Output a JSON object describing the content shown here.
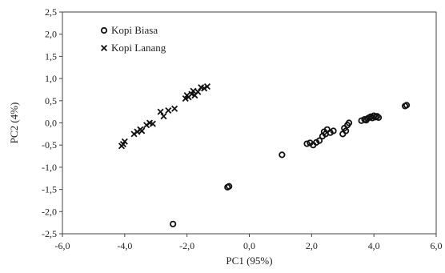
{
  "chart_data": {
    "type": "scatter",
    "title": "",
    "xlabel": "PC1 (95%)",
    "ylabel": "PC2 (4%)",
    "xlim": [
      -6.0,
      6.0
    ],
    "ylim": [
      -2.5,
      2.5
    ],
    "x_ticks": [
      "-6,0",
      "-4,0",
      "-2,0",
      "0,0",
      "2,0",
      "4,0",
      "6,0"
    ],
    "y_ticks": [
      "2,5",
      "2,0",
      "1,5",
      "1,0",
      "0,5",
      "0,0",
      "-0,5",
      "-1,0",
      "-1,5",
      "-2,0",
      "-2,5"
    ],
    "grid": false,
    "legend_position": "top-left",
    "series": [
      {
        "name": "Kopi Biasa",
        "marker": "circle",
        "color": "#111111",
        "points": [
          [
            -2.45,
            -2.28
          ],
          [
            -0.7,
            -1.45
          ],
          [
            -0.65,
            -1.43
          ],
          [
            1.05,
            -0.72
          ],
          [
            1.85,
            -0.47
          ],
          [
            1.95,
            -0.45
          ],
          [
            2.05,
            -0.5
          ],
          [
            2.15,
            -0.44
          ],
          [
            2.25,
            -0.4
          ],
          [
            2.35,
            -0.3
          ],
          [
            2.4,
            -0.2
          ],
          [
            2.45,
            -0.25
          ],
          [
            2.5,
            -0.15
          ],
          [
            2.6,
            -0.22
          ],
          [
            2.7,
            -0.18
          ],
          [
            3.0,
            -0.25
          ],
          [
            3.05,
            -0.12
          ],
          [
            3.1,
            -0.18
          ],
          [
            3.15,
            -0.05
          ],
          [
            3.2,
            0.0
          ],
          [
            3.6,
            0.05
          ],
          [
            3.7,
            0.08
          ],
          [
            3.75,
            0.06
          ],
          [
            3.8,
            0.1
          ],
          [
            3.85,
            0.12
          ],
          [
            3.9,
            0.14
          ],
          [
            3.95,
            0.11
          ],
          [
            4.0,
            0.16
          ],
          [
            4.05,
            0.13
          ],
          [
            4.1,
            0.15
          ],
          [
            4.15,
            0.12
          ],
          [
            5.0,
            0.38
          ],
          [
            5.05,
            0.4
          ]
        ]
      },
      {
        "name": "Kopi Lanang",
        "marker": "x",
        "color": "#111111",
        "points": [
          [
            -4.1,
            -0.52
          ],
          [
            -4.05,
            -0.48
          ],
          [
            -4.0,
            -0.42
          ],
          [
            -3.7,
            -0.25
          ],
          [
            -3.6,
            -0.2
          ],
          [
            -3.5,
            -0.15
          ],
          [
            -3.45,
            -0.18
          ],
          [
            -3.3,
            -0.05
          ],
          [
            -3.2,
            0.0
          ],
          [
            -3.1,
            -0.02
          ],
          [
            -2.85,
            0.25
          ],
          [
            -2.75,
            0.15
          ],
          [
            -2.6,
            0.28
          ],
          [
            -2.4,
            0.32
          ],
          [
            -2.05,
            0.55
          ],
          [
            -2.0,
            0.62
          ],
          [
            -1.95,
            0.58
          ],
          [
            -1.85,
            0.65
          ],
          [
            -1.8,
            0.72
          ],
          [
            -1.75,
            0.62
          ],
          [
            -1.65,
            0.7
          ],
          [
            -1.55,
            0.8
          ],
          [
            -1.45,
            0.78
          ],
          [
            -1.35,
            0.82
          ]
        ]
      }
    ]
  }
}
